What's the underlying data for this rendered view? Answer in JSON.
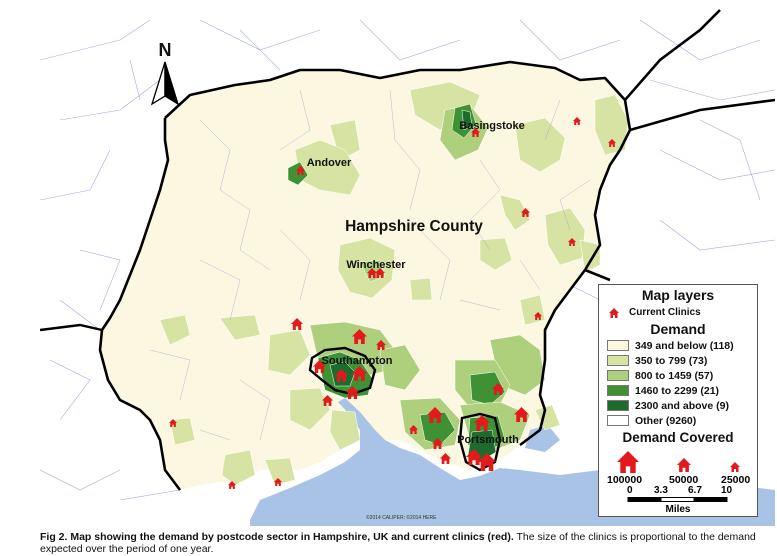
{
  "map": {
    "north_label": "N",
    "county_label": "Hampshire County",
    "places": [
      {
        "name": "Basingstoke"
      },
      {
        "name": "Andover"
      },
      {
        "name": "Winchester"
      },
      {
        "name": "Southampton"
      },
      {
        "name": "Portsmouth"
      }
    ],
    "copyright": "©2014 CALIPER; ©2014 HERE",
    "colors": {
      "base": "#fbf7e1",
      "class1": "#d6e3a2",
      "class2": "#aecf7c",
      "class3": "#6eb046",
      "class4": "#3e9233",
      "class5": "#1d6c2d",
      "water": "#a8c3e6",
      "clinic": "#e31a1c",
      "boundary": "#000000",
      "postcode_lines": "#8f96d2"
    }
  },
  "legend": {
    "title": "Map layers",
    "clinics_label": "Current Clinics",
    "demand_title": "Demand",
    "demand_classes": [
      {
        "label": "349 and below (118)",
        "color": "#fbf7e1"
      },
      {
        "label": "350 to 799 (73)",
        "color": "#d6e3a2"
      },
      {
        "label": "800 to 1459 (57)",
        "color": "#aecf7c"
      },
      {
        "label": "1460 to 2299 (21)",
        "color": "#3e9233"
      },
      {
        "label": "2300 and above (9)",
        "color": "#1d6c2d"
      },
      {
        "label": "Other (9260)",
        "color": "#ffffff"
      }
    ],
    "covered_title": "Demand Covered",
    "covered_values": [
      "100000",
      "50000",
      "25000"
    ],
    "scale_ticks": [
      "0",
      "3.3",
      "6.7",
      "10"
    ],
    "scale_unit": "Miles"
  },
  "caption": {
    "bold": "Fig 2. Map showing the demand by postcode sector in Hampshire, UK and current clinics (red).",
    "rest": " The size of the clinics is proportional to the demand expected over the period of one year."
  }
}
